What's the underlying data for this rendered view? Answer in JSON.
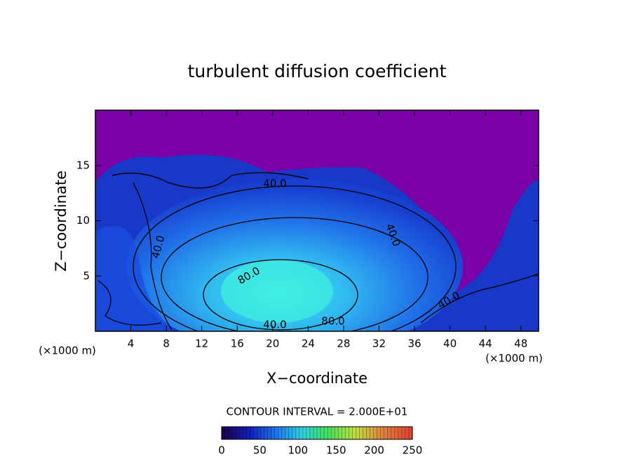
{
  "chart_data": {
    "type": "contour",
    "title": "turbulent diffusion coefficient",
    "x_label": "X−coordinate",
    "y_label": "Z−coordinate",
    "x_unit_labels": [
      "(×1000 m)",
      "(×1000 m)"
    ],
    "xlim": [
      0,
      50
    ],
    "xticks": [
      4,
      8,
      12,
      16,
      20,
      24,
      28,
      32,
      36,
      40,
      44,
      48
    ],
    "ylim": [
      0,
      20
    ],
    "yticks": [
      5,
      10,
      15
    ],
    "contour_labels": [
      "40.0",
      "40.0",
      "80.0",
      "40.0",
      "40.0",
      "80.0",
      "40.0"
    ],
    "annotation": "CONTOUR INTERVAL = 2.000E+01",
    "clim": [
      0,
      250
    ],
    "colorbar_ticks": [
      0,
      50,
      100,
      150,
      200,
      250
    ]
  }
}
